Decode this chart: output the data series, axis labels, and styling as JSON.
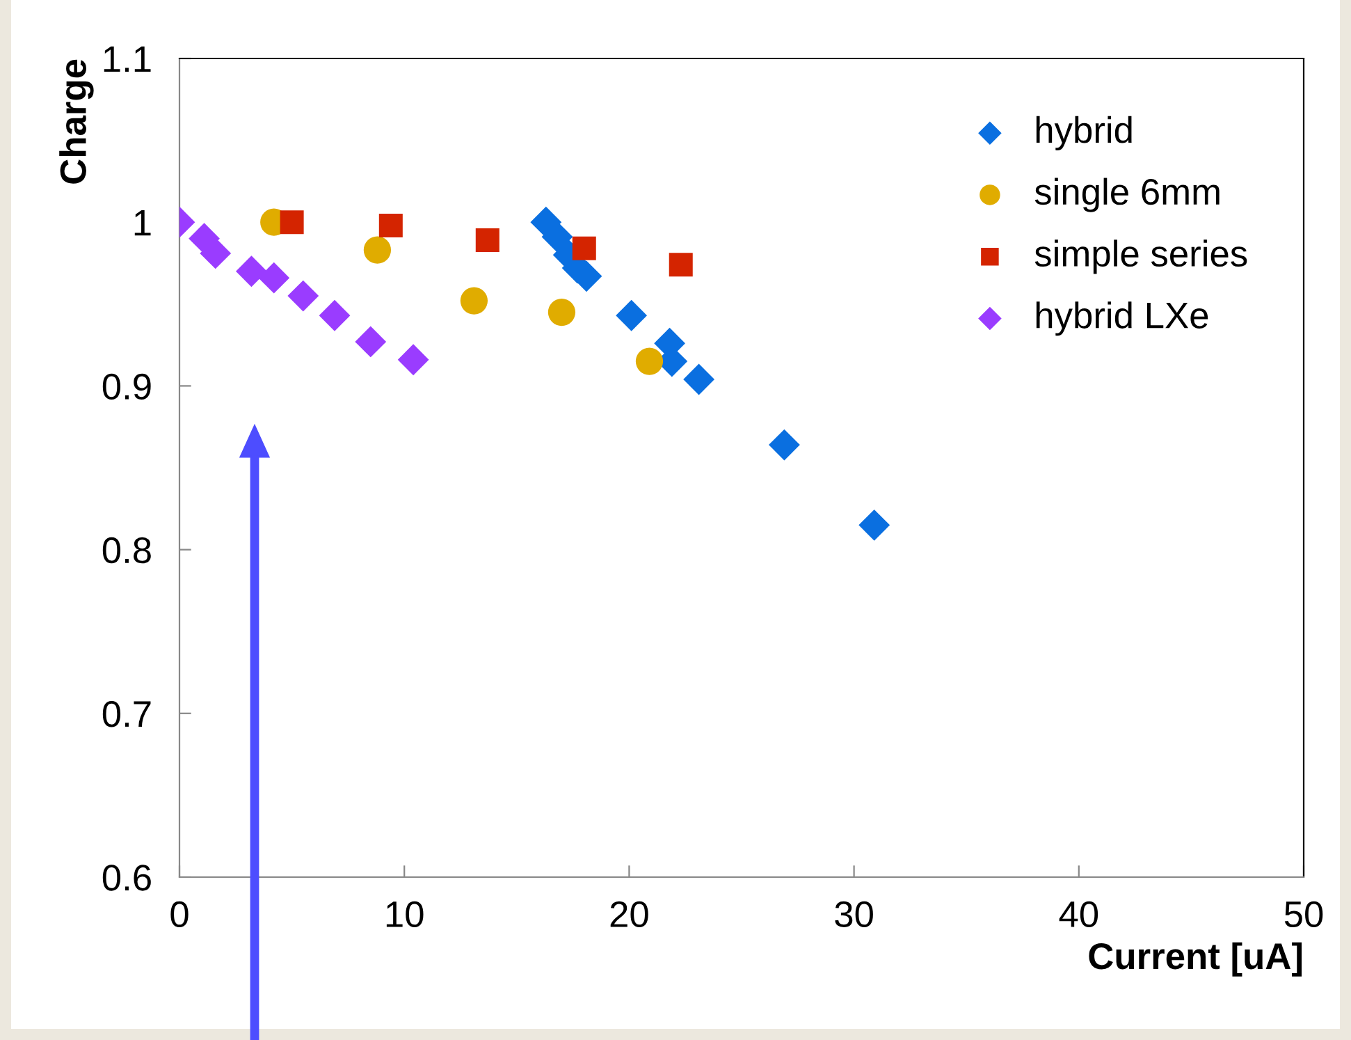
{
  "chart_data": {
    "type": "scatter",
    "xlabel": "Current [uA]",
    "ylabel": "Charge",
    "xlim": [
      0,
      50
    ],
    "xticks": [
      0,
      10,
      20,
      30,
      40,
      50
    ],
    "ylim": [
      0.6,
      1.1
    ],
    "yticks": [
      0.6,
      0.7,
      0.8,
      0.9,
      1,
      1.1
    ],
    "grid": false,
    "legend": "top right",
    "series": [
      {
        "name": "hybrid",
        "color": "#0a6fe0",
        "marker": "diamond",
        "x": [
          16.3,
          16.8,
          17.3,
          17.7,
          18.1,
          20.1,
          21.8,
          21.9,
          23.1,
          26.9,
          30.9
        ],
        "values": [
          1.0,
          0.991,
          0.98,
          0.972,
          0.967,
          0.943,
          0.926,
          0.915,
          0.904,
          0.864,
          0.815
        ]
      },
      {
        "name": "single 6mm",
        "color": "#e0ac00",
        "marker": "circle",
        "x": [
          4.2,
          8.8,
          13.1,
          17.0,
          20.9
        ],
        "values": [
          1.0,
          0.983,
          0.952,
          0.945,
          0.915
        ]
      },
      {
        "name": "simple series",
        "color": "#d42400",
        "marker": "square",
        "x": [
          5.0,
          9.4,
          13.7,
          18.0,
          22.3
        ],
        "values": [
          1.0,
          0.998,
          0.989,
          0.984,
          0.974
        ]
      },
      {
        "name": "hybrid LXe",
        "color": "#9a3cff",
        "marker": "diamond",
        "x": [
          0.0,
          1.1,
          1.6,
          3.2,
          4.2,
          5.5,
          6.9,
          8.5,
          10.4
        ],
        "values": [
          1.0,
          0.99,
          0.981,
          0.97,
          0.966,
          0.955,
          0.943,
          0.927,
          0.916
        ]
      }
    ]
  }
}
